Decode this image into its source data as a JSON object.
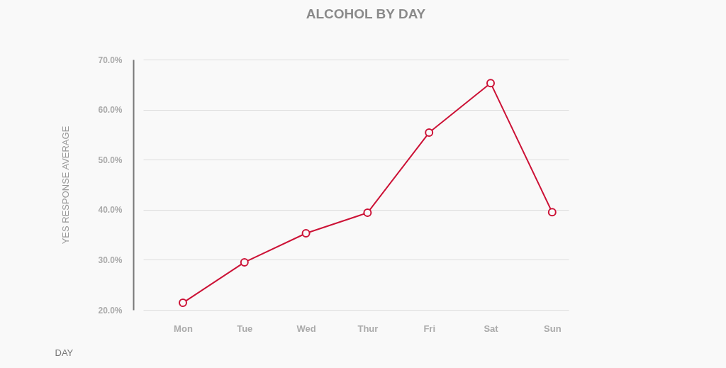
{
  "chart_data": {
    "type": "line",
    "title": "ALCOHOL BY DAY",
    "xlabel": "DAY",
    "ylabel": "YES RESPONSE AVERAGE",
    "categories": [
      "Mon",
      "Tue",
      "Wed",
      "Thur",
      "Fri",
      "Sat",
      "Sun"
    ],
    "series": [
      {
        "color": "#cc1236",
        "values": [
          21.4,
          29.5,
          35.3,
          39.4,
          55.4,
          65.3,
          39.5
        ]
      }
    ],
    "ylim": [
      20,
      70
    ],
    "yticks": [
      {
        "value": 20,
        "label": "20.0%"
      },
      {
        "value": 30,
        "label": "30.0%"
      },
      {
        "value": 40,
        "label": "40.0%"
      },
      {
        "value": 50,
        "label": "50.0%"
      },
      {
        "value": 60,
        "label": "60.0%"
      },
      {
        "value": 70,
        "label": "70.0%"
      }
    ],
    "grid": "y",
    "marker": "circle",
    "line_style": "solid"
  }
}
